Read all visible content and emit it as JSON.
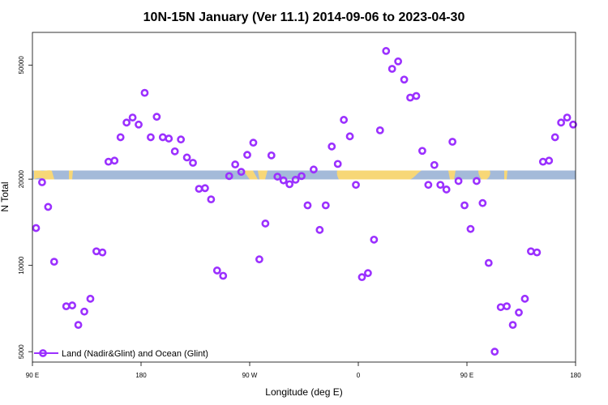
{
  "chart_data": {
    "type": "scatter",
    "title": "10N-15N January (Ver 11.1)   2014-09-06 to 2023-04-30",
    "xlabel": "Longitude (deg E)",
    "ylabel": "N Total",
    "x_ticks": [
      {
        "value": 90,
        "label": "90 E"
      },
      {
        "value": 180,
        "label": "180"
      },
      {
        "value": 270,
        "label": "90 W"
      },
      {
        "value": 360,
        "label": "0"
      },
      {
        "value": 450,
        "label": "90 E"
      },
      {
        "value": 540,
        "label": "180"
      }
    ],
    "y_ticks": [
      {
        "value": 5000,
        "label": "5000"
      },
      {
        "value": 10000,
        "label": "10000"
      },
      {
        "value": 20000,
        "label": "20000"
      },
      {
        "value": 50000,
        "label": "50000"
      }
    ],
    "xlim": [
      90,
      540
    ],
    "ylim": [
      4600,
      65000
    ],
    "y_scale": "log",
    "legend": {
      "position": "bottom-left",
      "label": "Land (Nadir&Glint) and Ocean (Glint)"
    },
    "series": [
      {
        "name": "Land (Nadir&Glint) and Ocean (Glint)",
        "color": "#9b30ff",
        "points": [
          [
            93,
            13500
          ],
          [
            98,
            19500
          ],
          [
            103,
            16000
          ],
          [
            108,
            10300
          ],
          [
            118,
            7200
          ],
          [
            123,
            7250
          ],
          [
            128,
            6200
          ],
          [
            133,
            6900
          ],
          [
            138,
            7650
          ],
          [
            143,
            11200
          ],
          [
            148,
            11100
          ],
          [
            153,
            23000
          ],
          [
            158,
            23200
          ],
          [
            163,
            28000
          ],
          [
            168,
            31500
          ],
          [
            173,
            32800
          ],
          [
            178,
            31000
          ],
          [
            183,
            40000
          ],
          [
            188,
            28000
          ],
          [
            193,
            33000
          ],
          [
            198,
            28000
          ],
          [
            203,
            27700
          ],
          [
            208,
            25000
          ],
          [
            213,
            27500
          ],
          [
            218,
            23800
          ],
          [
            223,
            22800
          ],
          [
            228,
            18500
          ],
          [
            233,
            18600
          ],
          [
            238,
            17000
          ],
          [
            243,
            9600
          ],
          [
            248,
            9200
          ],
          [
            253,
            20500
          ],
          [
            258,
            22500
          ],
          [
            263,
            21200
          ],
          [
            268,
            24300
          ],
          [
            273,
            26800
          ],
          [
            278,
            10500
          ],
          [
            283,
            14000
          ],
          [
            288,
            24200
          ],
          [
            293,
            20400
          ],
          [
            298,
            19800
          ],
          [
            303,
            19200
          ],
          [
            308,
            19900
          ],
          [
            313,
            20500
          ],
          [
            318,
            16200
          ],
          [
            323,
            21600
          ],
          [
            328,
            13300
          ],
          [
            333,
            16200
          ],
          [
            338,
            26000
          ],
          [
            343,
            22600
          ],
          [
            348,
            32200
          ],
          [
            353,
            28200
          ],
          [
            358,
            19100
          ],
          [
            363,
            9100
          ],
          [
            368,
            9400
          ],
          [
            373,
            12300
          ],
          [
            378,
            29600
          ],
          [
            383,
            56000
          ],
          [
            388,
            48500
          ],
          [
            393,
            51500
          ],
          [
            398,
            44500
          ],
          [
            403,
            38500
          ],
          [
            408,
            39000
          ],
          [
            413,
            25100
          ],
          [
            418,
            19100
          ],
          [
            423,
            22400
          ],
          [
            428,
            19100
          ],
          [
            433,
            18400
          ],
          [
            438,
            27000
          ],
          [
            443,
            19700
          ],
          [
            448,
            16200
          ],
          [
            453,
            13400
          ],
          [
            458,
            19700
          ],
          [
            463,
            16500
          ],
          [
            468,
            10200
          ],
          [
            473,
            5000
          ],
          [
            478,
            7150
          ],
          [
            483,
            7200
          ],
          [
            488,
            6200
          ],
          [
            493,
            6850
          ],
          [
            498,
            7650
          ],
          [
            503,
            11200
          ],
          [
            508,
            11100
          ],
          [
            513,
            23000
          ],
          [
            518,
            23200
          ],
          [
            523,
            28000
          ],
          [
            528,
            31500
          ],
          [
            533,
            32800
          ],
          [
            538,
            31000
          ]
        ]
      }
    ]
  }
}
